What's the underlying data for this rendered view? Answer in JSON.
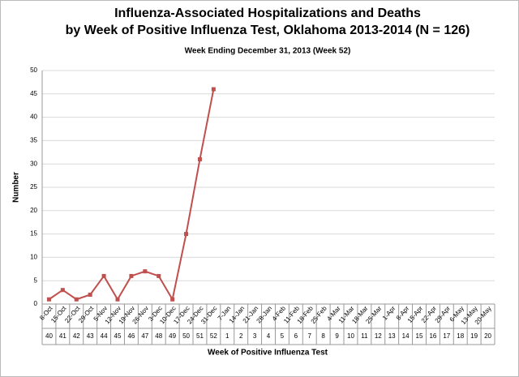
{
  "chart_data": {
    "type": "line",
    "title": "Influenza-Associated Hospitalizations and Deaths",
    "title_line2": "by Week of Positive Influenza Test, Oklahoma 2013-2014 (N = 126)",
    "subtitle": "Week Ending December 31, 2013 (Week 52)",
    "y_label": "Number",
    "x_label": "Week of Positive Influenza Test",
    "categories": [
      "8-Oct",
      "15-Oct",
      "22-Oct",
      "29-Oct",
      "5-Nov",
      "12-Nov",
      "19-Nov",
      "26-Nov",
      "3-Dec",
      "10-Dec",
      "17-Dec",
      "24-Dec",
      "31-Dec",
      "7-Jan",
      "14-Jan",
      "21-Jan",
      "28-Jan",
      "4-Feb",
      "11-Feb",
      "18-Feb",
      "25-Feb",
      "4-Mar",
      "11-Mar",
      "18-Mar",
      "25-Mar",
      "1-Apr",
      "8-Apr",
      "15-Apr",
      "22-Apr",
      "29-Apr",
      "6-May",
      "13-May",
      "20-May"
    ],
    "weeks": [
      "40",
      "41",
      "42",
      "43",
      "44",
      "45",
      "46",
      "47",
      "48",
      "49",
      "50",
      "51",
      "52",
      "1",
      "2",
      "3",
      "4",
      "5",
      "6",
      "7",
      "8",
      "9",
      "10",
      "11",
      "12",
      "13",
      "14",
      "15",
      "16",
      "17",
      "18",
      "19",
      "20"
    ],
    "series": [
      {
        "color": "#c0504d",
        "values": [
          1,
          3,
          1,
          2,
          6,
          1,
          6,
          7,
          6,
          1,
          15,
          31,
          46,
          null,
          null,
          null,
          null,
          null,
          null,
          null,
          null,
          null,
          null,
          null,
          null,
          null,
          null,
          null,
          null,
          null,
          null,
          null,
          null
        ]
      }
    ],
    "ylim": [
      0,
      50
    ],
    "yticks": [
      0,
      5,
      10,
      15,
      20,
      25,
      30,
      35,
      40,
      45,
      50
    ],
    "grid": true
  }
}
